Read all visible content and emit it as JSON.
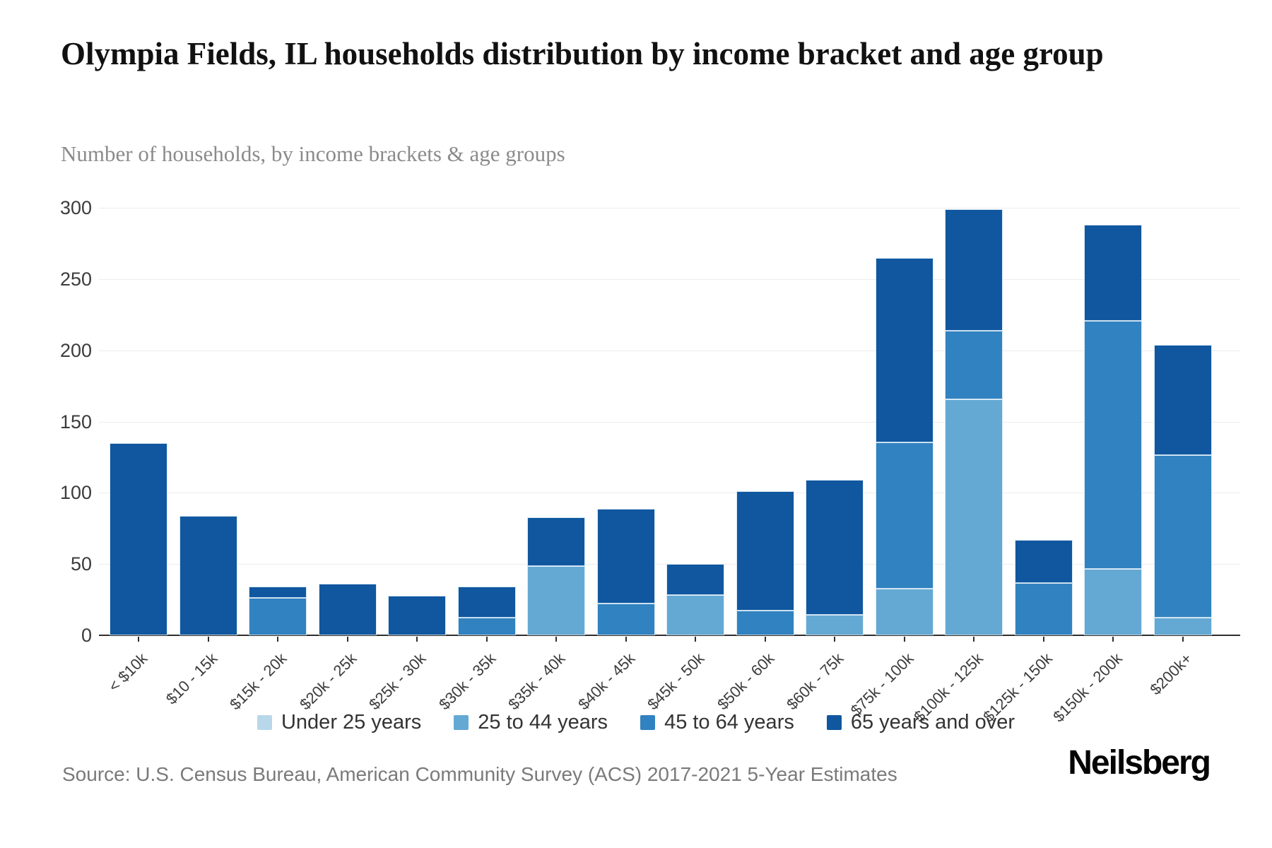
{
  "header": {
    "title": "Olympia Fields, IL households distribution by income bracket and age group",
    "subtitle": "Number of households, by income brackets & age groups"
  },
  "chart_data": {
    "type": "bar",
    "stacked": true,
    "title": "Olympia Fields, IL households distribution by income bracket and age group",
    "subtitle": "Number of households, by income brackets & age groups",
    "categories": [
      "< $10k",
      "$10 - 15k",
      "$15k - 20k",
      "$20k - 25k",
      "$25k - 30k",
      "$30k - 35k",
      "$35k - 40k",
      "$40k - 45k",
      "$45k - 50k",
      "$50k - 60k",
      "$60k - 75k",
      "$75k - 100k",
      "$100k - 125k",
      "$125k - 150k",
      "$150k - 200k",
      "$200k+"
    ],
    "series": [
      {
        "name": "Under 25 years",
        "color": "#B8D8EA",
        "values": [
          0,
          0,
          0,
          0,
          0,
          0,
          0,
          0,
          0,
          0,
          0,
          0,
          0,
          0,
          0,
          0
        ]
      },
      {
        "name": "25 to 44 years",
        "color": "#64A9D4",
        "values": [
          0,
          0,
          0,
          0,
          0,
          0,
          48,
          0,
          28,
          0,
          14,
          32,
          165,
          0,
          46,
          12
        ]
      },
      {
        "name": "45 to 64 years",
        "color": "#3182C0",
        "values": [
          0,
          0,
          26,
          0,
          0,
          12,
          0,
          22,
          0,
          17,
          0,
          103,
          48,
          36,
          174,
          114
        ]
      },
      {
        "name": "65 years and over",
        "color": "#10579F",
        "values": [
          134,
          83,
          7,
          35,
          27,
          21,
          34,
          66,
          21,
          83,
          94,
          129,
          85,
          30,
          67,
          77
        ]
      }
    ],
    "totals": [
      134,
      83,
      33,
      35,
      27,
      33,
      82,
      88,
      49,
      100,
      108,
      264,
      298,
      66,
      287,
      203
    ],
    "xlabel": "",
    "ylabel": "",
    "ylim": [
      0,
      300
    ],
    "yticks": [
      0,
      50,
      100,
      150,
      200,
      250,
      300
    ],
    "grid": true,
    "gridline_color": "#ececec",
    "axis_color": "#2f2f2f",
    "legend_position": "bottom"
  },
  "footer": {
    "source": "Source: U.S. Census Bureau, American Community Survey (ACS) 2017-2021 5-Year Estimates",
    "brand": "Neilsberg"
  }
}
